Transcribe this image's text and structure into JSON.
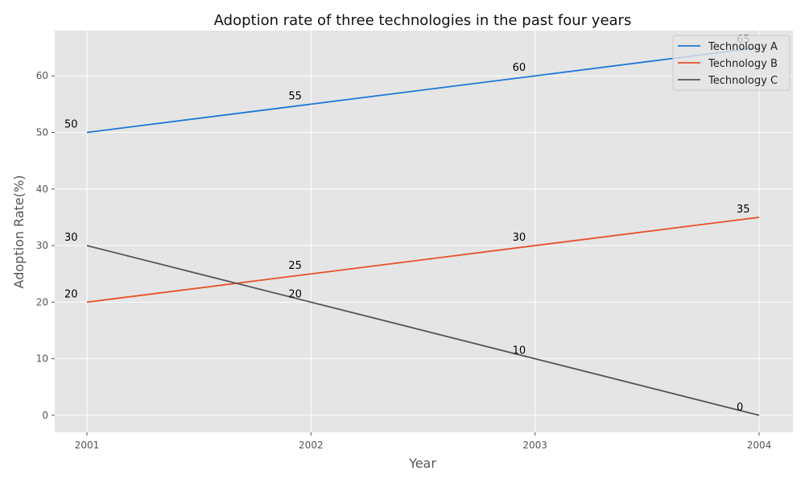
{
  "chart_data": {
    "type": "line",
    "title": "Adoption rate of three technologies in the past four years",
    "xlabel": "Year",
    "ylabel": "Adoption Rate(%)",
    "categories": [
      "2001",
      "2002",
      "2003",
      "2004"
    ],
    "ylim": [
      -3,
      68
    ],
    "yticks": [
      0,
      10,
      20,
      30,
      40,
      50,
      60
    ],
    "grid": true,
    "legend": "top-right",
    "series": [
      {
        "name": "Technology A",
        "values": [
          50,
          55,
          60,
          65
        ],
        "color": "#1f77d4"
      },
      {
        "name": "Technology B",
        "values": [
          20,
          25,
          30,
          35
        ],
        "color": "#e8502a"
      },
      {
        "name": "Technology C",
        "values": [
          30,
          20,
          10,
          0
        ],
        "color": "#555555"
      }
    ]
  }
}
